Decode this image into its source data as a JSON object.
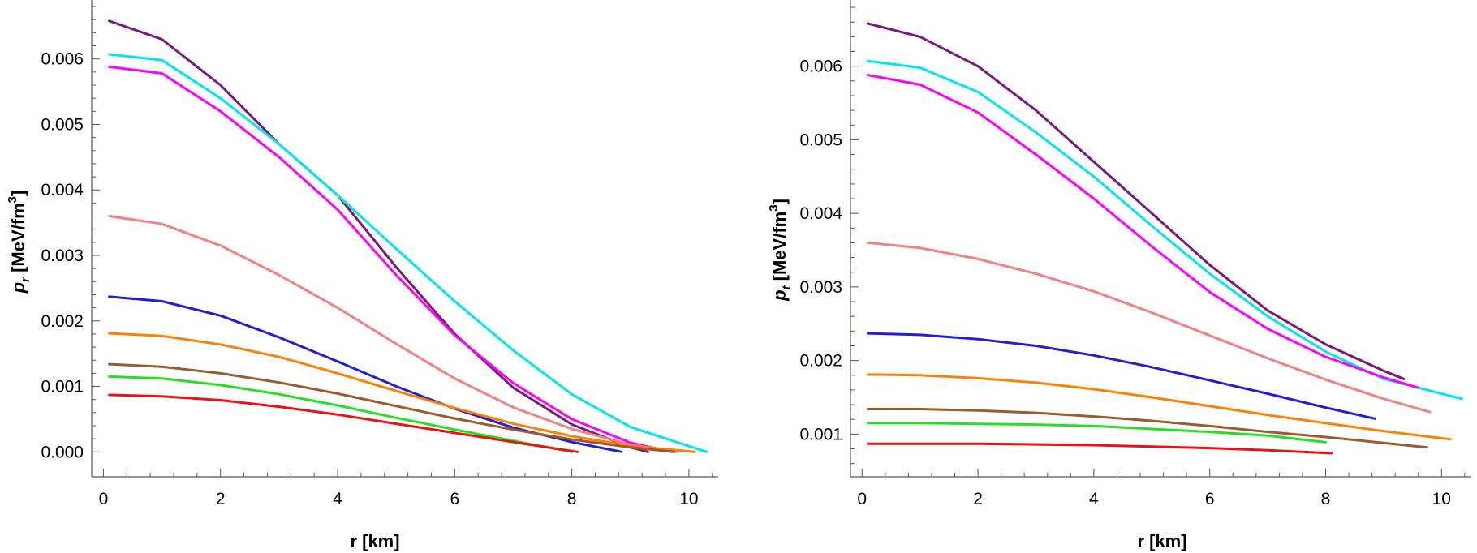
{
  "chart_data": [
    {
      "type": "line",
      "xlabel": "r [km]",
      "ylabel": {
        "main": "p",
        "sub": "r",
        "unit": " [MeV/fm",
        "sup": "3",
        "close": "]"
      },
      "xlim": [
        -0.2,
        10.5
      ],
      "ylim": [
        -0.00038,
        0.0069
      ],
      "x_ticks": [
        0,
        2,
        4,
        6,
        8,
        10
      ],
      "y_ticks": [
        "0.000",
        "0.001",
        "0.002",
        "0.003",
        "0.004",
        "0.005",
        "0.006"
      ],
      "y_tick_values": [
        0,
        0.001,
        0.002,
        0.003,
        0.004,
        0.005,
        0.006
      ],
      "series": [
        {
          "color": "#7a1a7a",
          "points": [
            [
              0.1,
              0.00658
            ],
            [
              1,
              0.0063
            ],
            [
              2,
              0.0056
            ],
            [
              3,
              0.0047
            ],
            [
              4,
              0.00392
            ],
            [
              5,
              0.00282
            ],
            [
              6,
              0.0018
            ],
            [
              7,
              0.00098
            ],
            [
              8,
              0.00042
            ],
            [
              9,
              7e-05
            ],
            [
              9.3,
              0.0
            ]
          ]
        },
        {
          "color": "#00e5ee",
          "points": [
            [
              0.1,
              0.00607
            ],
            [
              1,
              0.00598
            ],
            [
              2,
              0.0054
            ],
            [
              3,
              0.0047
            ],
            [
              4,
              0.00392
            ],
            [
              5,
              0.0031
            ],
            [
              6,
              0.0023
            ],
            [
              7,
              0.00155
            ],
            [
              8,
              0.00088
            ],
            [
              9,
              0.00038
            ],
            [
              10.3,
              0.0
            ]
          ]
        },
        {
          "color": "#ff00ff",
          "points": [
            [
              0.1,
              0.00588
            ],
            [
              1,
              0.00578
            ],
            [
              2,
              0.0052
            ],
            [
              3,
              0.0045
            ],
            [
              4,
              0.0037
            ],
            [
              5,
              0.0027
            ],
            [
              6,
              0.00178
            ],
            [
              7,
              0.00105
            ],
            [
              8,
              0.0005
            ],
            [
              9,
              0.00014
            ],
            [
              9.7,
              0.0
            ]
          ]
        },
        {
          "color": "#f48080",
          "points": [
            [
              0.1,
              0.0036
            ],
            [
              1,
              0.00348
            ],
            [
              2,
              0.00315
            ],
            [
              3,
              0.0027
            ],
            [
              4,
              0.0022
            ],
            [
              5,
              0.00165
            ],
            [
              6,
              0.00112
            ],
            [
              7,
              0.00068
            ],
            [
              8,
              0.00035
            ],
            [
              9,
              0.00011
            ],
            [
              9.8,
              0.0
            ]
          ]
        },
        {
          "color": "#1f1fd6",
          "points": [
            [
              0.1,
              0.00237
            ],
            [
              1,
              0.0023
            ],
            [
              2,
              0.00208
            ],
            [
              3,
              0.00175
            ],
            [
              4,
              0.00138
            ],
            [
              5,
              0.001
            ],
            [
              6,
              0.00066
            ],
            [
              7,
              0.00037
            ],
            [
              8,
              0.00015
            ],
            [
              8.85,
              0.0
            ]
          ]
        },
        {
          "color": "#ff8000",
          "points": [
            [
              0.1,
              0.00181
            ],
            [
              1,
              0.00177
            ],
            [
              2,
              0.00164
            ],
            [
              3,
              0.00145
            ],
            [
              4,
              0.0012
            ],
            [
              5,
              0.00093
            ],
            [
              6,
              0.00067
            ],
            [
              7,
              0.00043
            ],
            [
              8,
              0.00024
            ],
            [
              9,
              9e-05
            ],
            [
              10.1,
              0.0
            ]
          ]
        },
        {
          "color": "#9b5b2e",
          "points": [
            [
              0.1,
              0.00134
            ],
            [
              1,
              0.0013
            ],
            [
              2,
              0.0012
            ],
            [
              3,
              0.00106
            ],
            [
              4,
              0.00089
            ],
            [
              5,
              0.0007
            ],
            [
              6,
              0.00051
            ],
            [
              7,
              0.00034
            ],
            [
              8,
              0.00019
            ],
            [
              9,
              7e-05
            ],
            [
              9.75,
              0.0
            ]
          ]
        },
        {
          "color": "#22e022",
          "points": [
            [
              0.1,
              0.00115
            ],
            [
              1,
              0.00112
            ],
            [
              2,
              0.00102
            ],
            [
              3,
              0.00088
            ],
            [
              4,
              0.00071
            ],
            [
              5,
              0.00052
            ],
            [
              6,
              0.00034
            ],
            [
              7,
              0.00017
            ],
            [
              8.0,
              0.0
            ]
          ]
        },
        {
          "color": "#ee1111",
          "points": [
            [
              0.1,
              0.00087
            ],
            [
              1,
              0.00085
            ],
            [
              2,
              0.00079
            ],
            [
              3,
              0.00069
            ],
            [
              4,
              0.00057
            ],
            [
              5,
              0.00043
            ],
            [
              6,
              0.00029
            ],
            [
              7,
              0.00015
            ],
            [
              8.1,
              0.0
            ]
          ]
        }
      ]
    },
    {
      "type": "line",
      "xlabel": "r [km]",
      "ylabel": {
        "main": "p",
        "sub": "t",
        "unit": " [MeV/fm",
        "sup": "3",
        "close": "]"
      },
      "xlim": [
        -0.2,
        10.5
      ],
      "ylim": [
        0.00042,
        0.0069
      ],
      "x_ticks": [
        0,
        2,
        4,
        6,
        8,
        10
      ],
      "y_ticks": [
        "0.001",
        "0.002",
        "0.003",
        "0.004",
        "0.005",
        "0.006"
      ],
      "y_tick_values": [
        0.001,
        0.002,
        0.003,
        0.004,
        0.005,
        0.006
      ],
      "series": [
        {
          "color": "#7a1a7a",
          "points": [
            [
              0.1,
              0.00658
            ],
            [
              1,
              0.0064
            ],
            [
              2,
              0.006
            ],
            [
              3,
              0.0054
            ],
            [
              4,
              0.0047
            ],
            [
              5,
              0.004
            ],
            [
              6,
              0.0033
            ],
            [
              7,
              0.00268
            ],
            [
              8,
              0.00222
            ],
            [
              9,
              0.00186
            ],
            [
              9.35,
              0.00175
            ]
          ]
        },
        {
          "color": "#00e5ee",
          "points": [
            [
              0.1,
              0.00607
            ],
            [
              1,
              0.00598
            ],
            [
              2,
              0.00565
            ],
            [
              3,
              0.0051
            ],
            [
              4,
              0.0045
            ],
            [
              5,
              0.00383
            ],
            [
              6,
              0.00318
            ],
            [
              7,
              0.0026
            ],
            [
              8,
              0.00212
            ],
            [
              9,
              0.00175
            ],
            [
              10.35,
              0.00148
            ]
          ]
        },
        {
          "color": "#ff00ff",
          "points": [
            [
              0.1,
              0.00588
            ],
            [
              1,
              0.00575
            ],
            [
              2,
              0.00537
            ],
            [
              3,
              0.0048
            ],
            [
              4,
              0.0042
            ],
            [
              5,
              0.00355
            ],
            [
              6,
              0.00293
            ],
            [
              7,
              0.00243
            ],
            [
              8,
              0.00205
            ],
            [
              9,
              0.00177
            ],
            [
              9.6,
              0.00163
            ]
          ]
        },
        {
          "color": "#f48080",
          "points": [
            [
              0.1,
              0.0036
            ],
            [
              1,
              0.00353
            ],
            [
              2,
              0.00338
            ],
            [
              3,
              0.00318
            ],
            [
              4,
              0.00294
            ],
            [
              5,
              0.00265
            ],
            [
              6,
              0.00234
            ],
            [
              7,
              0.00203
            ],
            [
              8,
              0.00174
            ],
            [
              9,
              0.00148
            ],
            [
              9.8,
              0.0013
            ]
          ]
        },
        {
          "color": "#1f1fd6",
          "points": [
            [
              0.1,
              0.00237
            ],
            [
              1,
              0.00235
            ],
            [
              2,
              0.00229
            ],
            [
              3,
              0.0022
            ],
            [
              4,
              0.00207
            ],
            [
              5,
              0.00191
            ],
            [
              6,
              0.00173
            ],
            [
              7,
              0.00155
            ],
            [
              8,
              0.00136
            ],
            [
              8.85,
              0.00121
            ]
          ]
        },
        {
          "color": "#ff8000",
          "points": [
            [
              0.1,
              0.00181
            ],
            [
              1,
              0.0018
            ],
            [
              2,
              0.00176
            ],
            [
              3,
              0.0017
            ],
            [
              4,
              0.00161
            ],
            [
              5,
              0.0015
            ],
            [
              6,
              0.00138
            ],
            [
              7,
              0.00126
            ],
            [
              8,
              0.00115
            ],
            [
              9,
              0.00104
            ],
            [
              10.15,
              0.00093
            ]
          ]
        },
        {
          "color": "#9b5b2e",
          "points": [
            [
              0.1,
              0.00134
            ],
            [
              1,
              0.00134
            ],
            [
              2,
              0.00132
            ],
            [
              3,
              0.00129
            ],
            [
              4,
              0.00124
            ],
            [
              5,
              0.00118
            ],
            [
              6,
              0.00111
            ],
            [
              7,
              0.00103
            ],
            [
              8,
              0.00096
            ],
            [
              9,
              0.00088
            ],
            [
              9.75,
              0.00082
            ]
          ]
        },
        {
          "color": "#22e022",
          "points": [
            [
              0.1,
              0.00115
            ],
            [
              1,
              0.00115
            ],
            [
              2,
              0.00114
            ],
            [
              3,
              0.00113
            ],
            [
              4,
              0.00111
            ],
            [
              5,
              0.00107
            ],
            [
              6,
              0.00103
            ],
            [
              7,
              0.00098
            ],
            [
              8.0,
              0.00089
            ]
          ]
        },
        {
          "color": "#ee1111",
          "points": [
            [
              0.1,
              0.00087
            ],
            [
              1,
              0.00087
            ],
            [
              2,
              0.00087
            ],
            [
              3,
              0.00086
            ],
            [
              4,
              0.00085
            ],
            [
              5,
              0.00083
            ],
            [
              6,
              0.00081
            ],
            [
              7,
              0.00078
            ],
            [
              8.1,
              0.00074
            ]
          ]
        }
      ]
    }
  ]
}
